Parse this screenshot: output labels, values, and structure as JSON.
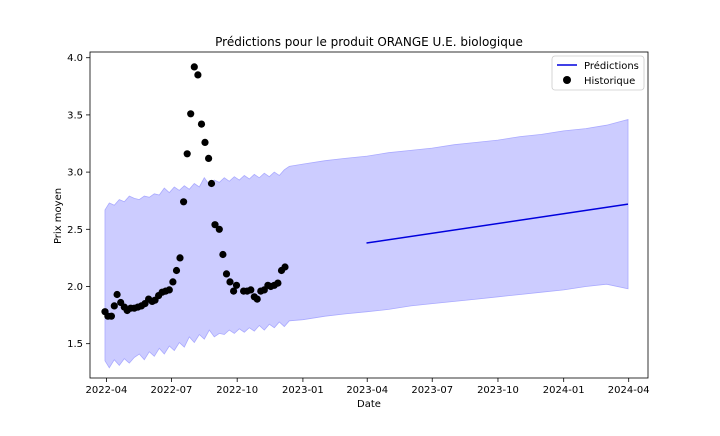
{
  "chart_data": {
    "type": "line",
    "title": "Prédictions pour le produit ORANGE U.E. biologique",
    "xlabel": "Date",
    "ylabel": "Prix moyen",
    "xlim": [
      "2022-03-09",
      "2024-04-28"
    ],
    "ylim": [
      1.2,
      4.05
    ],
    "x_ticks": [
      {
        "date": "2022-04-01",
        "label": "2022-04"
      },
      {
        "date": "2022-07-01",
        "label": "2022-07"
      },
      {
        "date": "2022-10-01",
        "label": "2022-10"
      },
      {
        "date": "2023-01-01",
        "label": "2023-01"
      },
      {
        "date": "2023-04-01",
        "label": "2023-04"
      },
      {
        "date": "2023-07-01",
        "label": "2023-07"
      },
      {
        "date": "2023-10-01",
        "label": "2023-10"
      },
      {
        "date": "2024-01-01",
        "label": "2024-01"
      },
      {
        "date": "2024-04-01",
        "label": "2024-04"
      }
    ],
    "y_ticks": [
      1.5,
      2.0,
      2.5,
      3.0,
      3.5,
      4.0
    ],
    "grid": false,
    "legend_position": "top-right",
    "series": [
      {
        "name": "Historique",
        "type": "scatter",
        "color": "#000000",
        "points": [
          [
            "2022-03-30",
            1.78
          ],
          [
            "2022-04-03",
            1.74
          ],
          [
            "2022-04-08",
            1.74
          ],
          [
            "2022-04-12",
            1.83
          ],
          [
            "2022-04-16",
            1.93
          ],
          [
            "2022-04-21",
            1.86
          ],
          [
            "2022-04-26",
            1.82
          ],
          [
            "2022-04-30",
            1.79
          ],
          [
            "2022-05-05",
            1.81
          ],
          [
            "2022-05-10",
            1.81
          ],
          [
            "2022-05-15",
            1.82
          ],
          [
            "2022-05-20",
            1.83
          ],
          [
            "2022-05-25",
            1.85
          ],
          [
            "2022-05-30",
            1.89
          ],
          [
            "2022-06-04",
            1.87
          ],
          [
            "2022-06-08",
            1.88
          ],
          [
            "2022-06-13",
            1.92
          ],
          [
            "2022-06-18",
            1.95
          ],
          [
            "2022-06-23",
            1.96
          ],
          [
            "2022-06-28",
            1.97
          ],
          [
            "2022-07-03",
            2.04
          ],
          [
            "2022-07-08",
            2.14
          ],
          [
            "2022-07-13",
            2.25
          ],
          [
            "2022-07-18",
            2.74
          ],
          [
            "2022-07-23",
            3.16
          ],
          [
            "2022-07-28",
            3.51
          ],
          [
            "2022-08-02",
            3.92
          ],
          [
            "2022-08-07",
            3.85
          ],
          [
            "2022-08-12",
            3.42
          ],
          [
            "2022-08-17",
            3.26
          ],
          [
            "2022-08-22",
            3.12
          ],
          [
            "2022-08-26",
            2.9
          ],
          [
            "2022-08-31",
            2.54
          ],
          [
            "2022-09-06",
            2.5
          ],
          [
            "2022-09-11",
            2.28
          ],
          [
            "2022-09-16",
            2.11
          ],
          [
            "2022-09-21",
            2.04
          ],
          [
            "2022-09-26",
            1.96
          ],
          [
            "2022-09-30",
            2.01
          ],
          [
            "2022-10-10",
            1.96
          ],
          [
            "2022-10-15",
            1.96
          ],
          [
            "2022-10-20",
            1.97
          ],
          [
            "2022-10-25",
            1.91
          ],
          [
            "2022-10-29",
            1.89
          ],
          [
            "2022-11-03",
            1.96
          ],
          [
            "2022-11-08",
            1.97
          ],
          [
            "2022-11-13",
            2.01
          ],
          [
            "2022-11-17",
            2.0
          ],
          [
            "2022-11-22",
            2.01
          ],
          [
            "2022-11-27",
            2.03
          ],
          [
            "2022-12-02",
            2.14
          ],
          [
            "2022-12-07",
            2.17
          ]
        ]
      },
      {
        "name": "Prédictions",
        "type": "line",
        "color": "#0000dd",
        "points": [
          [
            "2023-03-31",
            2.38
          ],
          [
            "2024-03-31",
            2.72
          ]
        ],
        "interval_color": "#aaaaff",
        "interval_start": "2022-03-30",
        "interval_end": "2024-03-31",
        "interval_lower": [
          [
            "2022-03-30",
            1.35
          ],
          [
            "2022-04-05",
            1.29
          ],
          [
            "2022-04-12",
            1.36
          ],
          [
            "2022-04-19",
            1.31
          ],
          [
            "2022-04-26",
            1.37
          ],
          [
            "2022-05-03",
            1.33
          ],
          [
            "2022-05-10",
            1.38
          ],
          [
            "2022-05-17",
            1.41
          ],
          [
            "2022-05-24",
            1.36
          ],
          [
            "2022-05-31",
            1.43
          ],
          [
            "2022-06-07",
            1.39
          ],
          [
            "2022-06-14",
            1.46
          ],
          [
            "2022-06-21",
            1.41
          ],
          [
            "2022-06-28",
            1.48
          ],
          [
            "2022-07-05",
            1.44
          ],
          [
            "2022-07-12",
            1.51
          ],
          [
            "2022-07-19",
            1.47
          ],
          [
            "2022-07-26",
            1.56
          ],
          [
            "2022-08-02",
            1.51
          ],
          [
            "2022-08-09",
            1.58
          ],
          [
            "2022-08-16",
            1.54
          ],
          [
            "2022-08-23",
            1.62
          ],
          [
            "2022-08-30",
            1.56
          ],
          [
            "2022-09-06",
            1.59
          ],
          [
            "2022-09-13",
            1.58
          ],
          [
            "2022-09-20",
            1.62
          ],
          [
            "2022-09-27",
            1.59
          ],
          [
            "2022-10-04",
            1.63
          ],
          [
            "2022-10-11",
            1.6
          ],
          [
            "2022-10-18",
            1.64
          ],
          [
            "2022-10-25",
            1.61
          ],
          [
            "2022-11-01",
            1.66
          ],
          [
            "2022-11-08",
            1.62
          ],
          [
            "2022-11-15",
            1.67
          ],
          [
            "2022-11-22",
            1.64
          ],
          [
            "2022-11-29",
            1.69
          ],
          [
            "2022-12-06",
            1.65
          ],
          [
            "2022-12-13",
            1.7
          ],
          [
            "2023-01-01",
            1.71
          ],
          [
            "2023-02-01",
            1.74
          ],
          [
            "2023-03-01",
            1.76
          ],
          [
            "2023-04-01",
            1.78
          ],
          [
            "2023-05-01",
            1.8
          ],
          [
            "2023-06-01",
            1.83
          ],
          [
            "2023-07-01",
            1.85
          ],
          [
            "2023-08-01",
            1.87
          ],
          [
            "2023-09-01",
            1.89
          ],
          [
            "2023-10-01",
            1.91
          ],
          [
            "2023-11-01",
            1.93
          ],
          [
            "2023-12-01",
            1.95
          ],
          [
            "2024-01-01",
            1.97
          ],
          [
            "2024-02-01",
            2.0
          ],
          [
            "2024-03-01",
            2.02
          ],
          [
            "2024-03-31",
            1.98
          ]
        ],
        "interval_upper": [
          [
            "2022-03-30",
            2.67
          ],
          [
            "2022-04-05",
            2.73
          ],
          [
            "2022-04-12",
            2.71
          ],
          [
            "2022-04-19",
            2.76
          ],
          [
            "2022-04-26",
            2.74
          ],
          [
            "2022-05-03",
            2.79
          ],
          [
            "2022-05-10",
            2.77
          ],
          [
            "2022-05-17",
            2.76
          ],
          [
            "2022-05-24",
            2.79
          ],
          [
            "2022-05-31",
            2.78
          ],
          [
            "2022-06-07",
            2.81
          ],
          [
            "2022-06-14",
            2.8
          ],
          [
            "2022-06-21",
            2.86
          ],
          [
            "2022-06-28",
            2.82
          ],
          [
            "2022-07-05",
            2.87
          ],
          [
            "2022-07-12",
            2.84
          ],
          [
            "2022-07-19",
            2.88
          ],
          [
            "2022-07-26",
            2.85
          ],
          [
            "2022-08-02",
            2.9
          ],
          [
            "2022-08-09",
            2.87
          ],
          [
            "2022-08-16",
            2.95
          ],
          [
            "2022-08-23",
            2.89
          ],
          [
            "2022-08-30",
            2.93
          ],
          [
            "2022-09-06",
            2.91
          ],
          [
            "2022-09-13",
            2.95
          ],
          [
            "2022-09-20",
            2.92
          ],
          [
            "2022-09-27",
            2.96
          ],
          [
            "2022-10-04",
            2.93
          ],
          [
            "2022-10-11",
            2.97
          ],
          [
            "2022-10-18",
            2.94
          ],
          [
            "2022-10-25",
            2.98
          ],
          [
            "2022-11-01",
            2.95
          ],
          [
            "2022-11-08",
            2.99
          ],
          [
            "2022-11-15",
            2.96
          ],
          [
            "2022-11-22",
            3.0
          ],
          [
            "2022-11-29",
            2.97
          ],
          [
            "2022-12-06",
            3.02
          ],
          [
            "2022-12-13",
            3.05
          ],
          [
            "2023-01-01",
            3.07
          ],
          [
            "2023-02-01",
            3.1
          ],
          [
            "2023-03-01",
            3.12
          ],
          [
            "2023-04-01",
            3.14
          ],
          [
            "2023-05-01",
            3.17
          ],
          [
            "2023-06-01",
            3.19
          ],
          [
            "2023-07-01",
            3.21
          ],
          [
            "2023-08-01",
            3.24
          ],
          [
            "2023-09-01",
            3.26
          ],
          [
            "2023-10-01",
            3.28
          ],
          [
            "2023-11-01",
            3.31
          ],
          [
            "2023-12-01",
            3.33
          ],
          [
            "2024-01-01",
            3.36
          ],
          [
            "2024-02-01",
            3.38
          ],
          [
            "2024-03-01",
            3.41
          ],
          [
            "2024-03-31",
            3.46
          ]
        ]
      }
    ]
  }
}
